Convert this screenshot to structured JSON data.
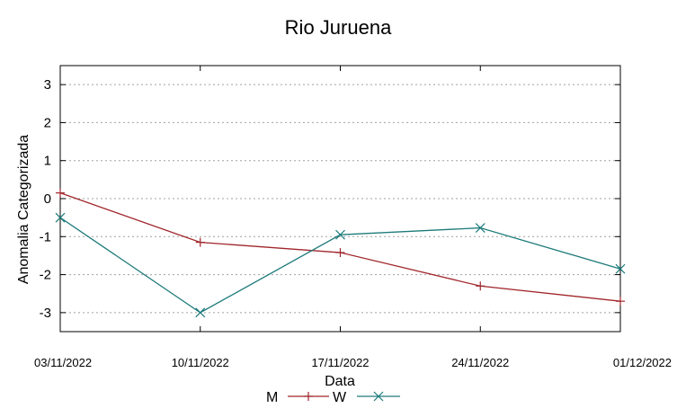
{
  "chart_data": {
    "type": "line",
    "title": "Rio Juruena",
    "xlabel": "Data",
    "ylabel": "Anomalia Categorizada",
    "categories": [
      "03/11/2022",
      "10/11/2022",
      "17/11/2022",
      "24/11/2022",
      "01/12/2022"
    ],
    "ylim": [
      -3.5,
      3.5
    ],
    "yticks": [
      "3",
      "2",
      "1",
      "0",
      "-1",
      "-2",
      "-3"
    ],
    "ytick_values": [
      3,
      2,
      1,
      0,
      -1,
      -2,
      -3
    ],
    "grid": true,
    "legend_position": "bottom-center",
    "series": [
      {
        "name": "M",
        "color": "#a0262b",
        "marker": "plus",
        "values": [
          0.15,
          -1.15,
          -1.42,
          -2.3,
          -2.7
        ]
      },
      {
        "name": "W",
        "color": "#1d7a7a",
        "marker": "cross",
        "values": [
          -0.5,
          -3.0,
          -0.95,
          -0.77,
          -1.85
        ]
      }
    ]
  }
}
